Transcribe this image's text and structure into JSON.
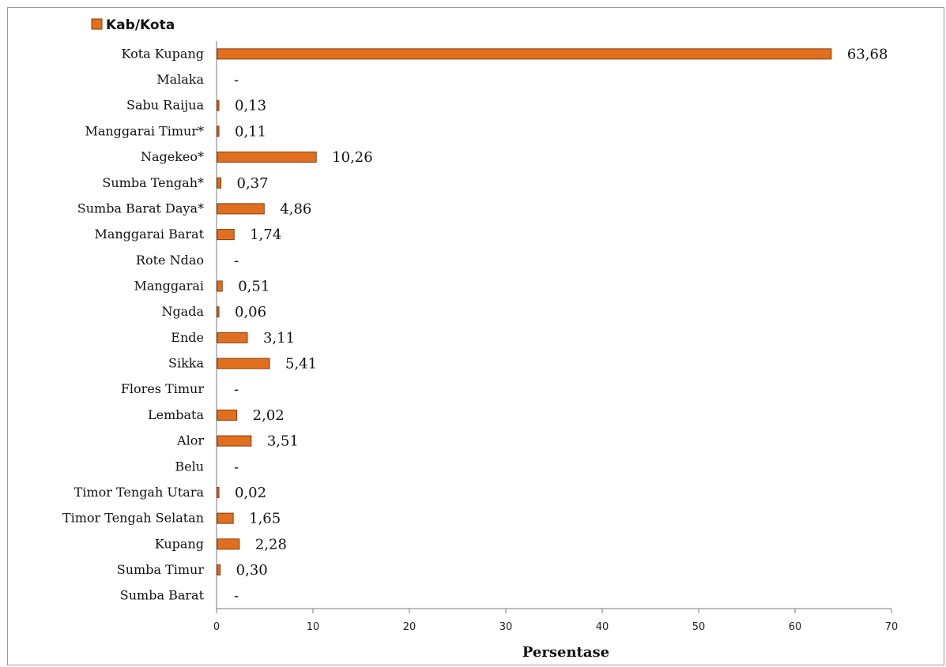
{
  "chart_data": {
    "type": "bar",
    "orientation": "horizontal",
    "legend": {
      "label": "Kab/Kota",
      "placement": "top-left"
    },
    "xlabel": "Persentase",
    "ylabel": "",
    "xlim": [
      0,
      70
    ],
    "xticks": [
      "0",
      "10",
      "20",
      "30",
      "40",
      "50",
      "60",
      "70"
    ],
    "grid": false,
    "bar_color": "#e0701f",
    "bar_edge_color": "#8a3a08",
    "categories": [
      "Kota Kupang",
      "Malaka",
      "Sabu Raijua",
      "Manggarai Timur*",
      "Nagekeo*",
      "Sumba Tengah*",
      "Sumba Barat Daya*",
      "Manggarai Barat",
      "Rote Ndao",
      "Manggarai",
      "Ngada",
      "Ende",
      "Sikka",
      "Flores Timur",
      "Lembata",
      "Alor",
      "Belu",
      "Timor Tengah Utara",
      "Timor Tengah Selatan",
      "Kupang",
      "Sumba Timur",
      "Sumba Barat"
    ],
    "values": [
      63.68,
      null,
      0.13,
      0.11,
      10.26,
      0.37,
      4.86,
      1.74,
      null,
      0.51,
      0.06,
      3.11,
      5.41,
      null,
      2.02,
      3.51,
      null,
      0.02,
      1.65,
      2.28,
      0.3,
      null
    ],
    "value_labels": [
      "63,68",
      "-",
      "0,13",
      "0,11",
      "10,26",
      "0,37",
      "4,86",
      "1,74",
      "-",
      "0,51",
      "0,06",
      "3,11",
      "5,41",
      "-",
      "2,02",
      "3,51",
      "-",
      "0,02",
      "1,65",
      "2,28",
      "0,30",
      "-"
    ]
  }
}
